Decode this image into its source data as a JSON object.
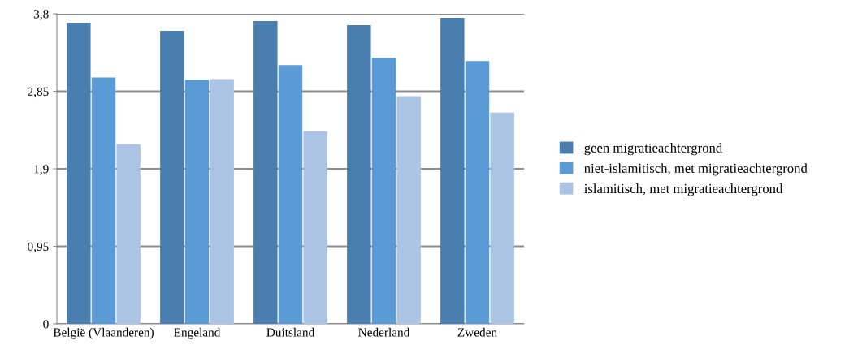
{
  "chart_data": {
    "type": "bar",
    "categories": [
      "België (Vlaanderen)",
      "Engeland",
      "Duitsland",
      "Nederland",
      "Zweden"
    ],
    "series": [
      {
        "name": "geen migratieachtergrond",
        "color": "#4a7eae",
        "values": [
          3.69,
          3.59,
          3.71,
          3.66,
          3.75
        ]
      },
      {
        "name": "niet-islamitisch, met migratieachtergrond",
        "color": "#5b9bd5",
        "values": [
          3.02,
          2.99,
          3.17,
          3.26,
          3.22
        ]
      },
      {
        "name": "islamitisch, met migratieachtergrond",
        "color": "#abc4e4",
        "values": [
          2.2,
          3.0,
          2.36,
          2.79,
          2.59
        ]
      }
    ],
    "ylim": [
      0,
      3.8
    ],
    "yticks": [
      {
        "value": 0,
        "label": "0"
      },
      {
        "value": 0.95,
        "label": "0,95"
      },
      {
        "value": 1.9,
        "label": "1,9"
      },
      {
        "value": 2.85,
        "label": "2,85"
      },
      {
        "value": 3.8,
        "label": "3,8"
      }
    ],
    "grid": "y",
    "legend": "right"
  }
}
